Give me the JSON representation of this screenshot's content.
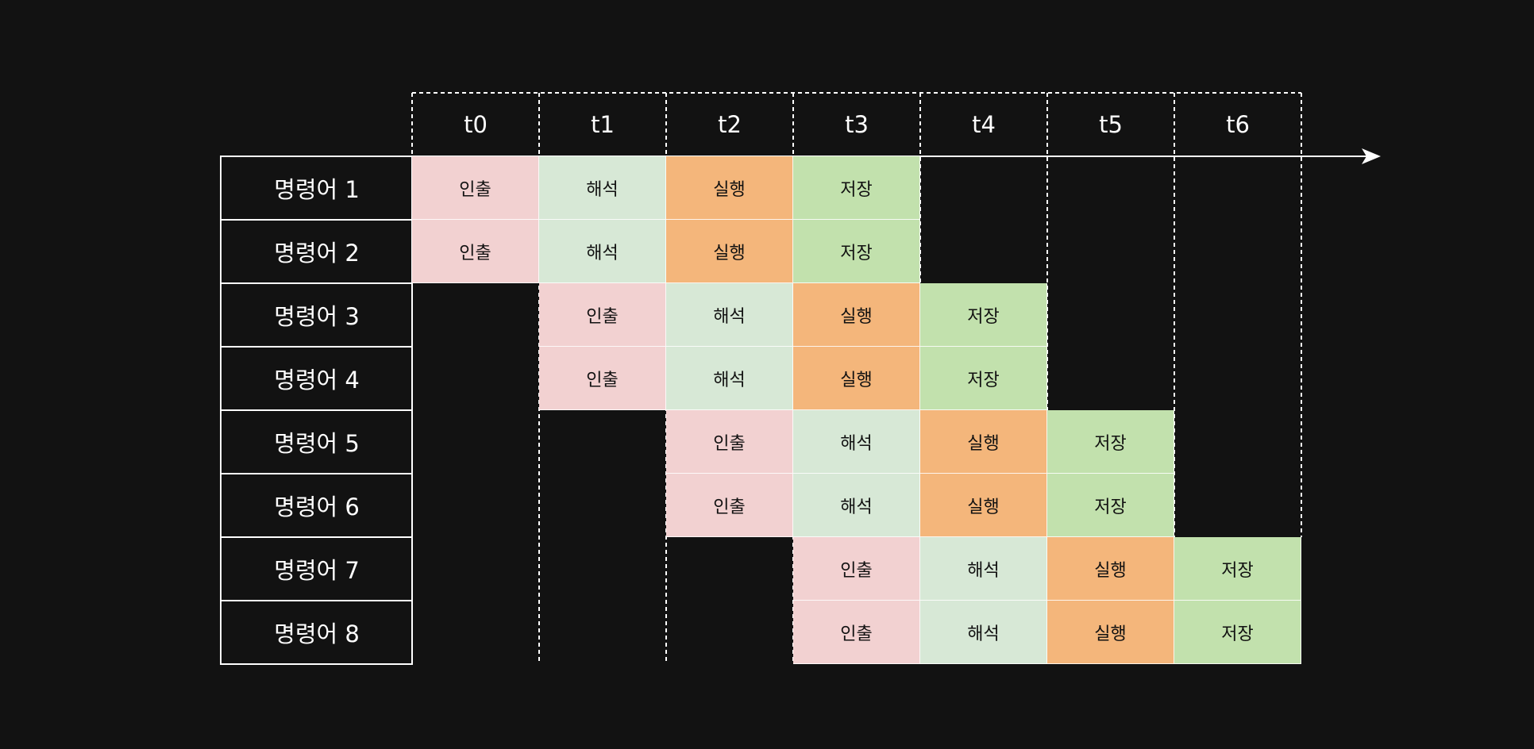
{
  "time_labels": [
    "t0",
    "t1",
    "t2",
    "t3",
    "t4",
    "t5",
    "t6"
  ],
  "rows": [
    {
      "label": "명령어 1",
      "start": 0
    },
    {
      "label": "명령어 2",
      "start": 0
    },
    {
      "label": "명령어 3",
      "start": 1
    },
    {
      "label": "명령어 4",
      "start": 1
    },
    {
      "label": "명령어 5",
      "start": 2
    },
    {
      "label": "명령어 6",
      "start": 2
    },
    {
      "label": "명령어 7",
      "start": 3
    },
    {
      "label": "명령어 8",
      "start": 3
    }
  ],
  "stages": [
    {
      "label": "인출",
      "color": "#f2d1d1"
    },
    {
      "label": "해석",
      "color": "#d7e8d6"
    },
    {
      "label": "실행",
      "color": "#f4b67b"
    },
    {
      "label": "저장",
      "color": "#c2e1ad"
    }
  ],
  "colors": {
    "background": "#121212",
    "foreground": "#ffffff",
    "cell_text": "#111111"
  }
}
